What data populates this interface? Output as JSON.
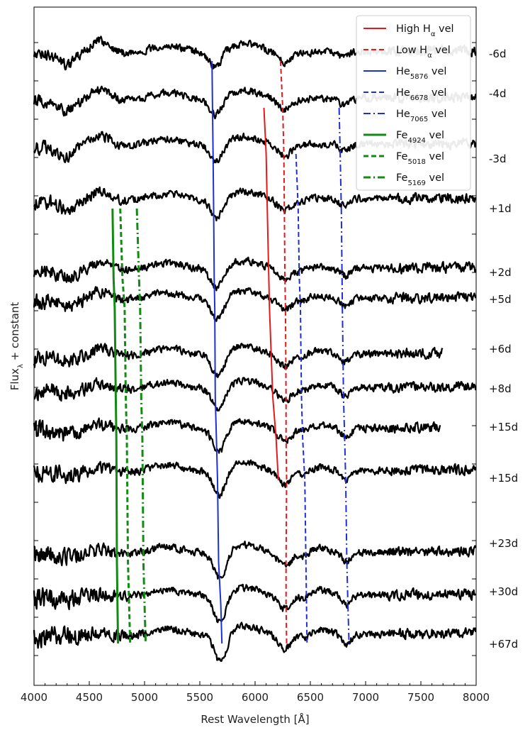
{
  "chart_data": {
    "type": "line",
    "xlabel": "Rest Wavelength [Å]",
    "ylabel_main": "Flux",
    "ylabel_sub": "λ",
    "ylabel_rest": " + constant",
    "xlim": [
      4000,
      8000
    ],
    "xticks": [
      4000,
      4500,
      5000,
      5500,
      6000,
      6500,
      7000,
      7500,
      8000
    ],
    "epochs": [
      {
        "label": "-6d",
        "xmin": 4000,
        "xmax": 8000
      },
      {
        "label": "-4d",
        "xmin": 4000,
        "xmax": 8000
      },
      {
        "label": "-3d",
        "xmin": 4000,
        "xmax": 8000
      },
      {
        "label": "+1d",
        "xmin": 4000,
        "xmax": 8000
      },
      {
        "label": "+2d",
        "xmin": 4000,
        "xmax": 8000
      },
      {
        "label": "+5d",
        "xmin": 4000,
        "xmax": 8000
      },
      {
        "label": "+6d",
        "xmin": 4000,
        "xmax": 7700
      },
      {
        "label": "+8d",
        "xmin": 4000,
        "xmax": 8000
      },
      {
        "label": "+15d",
        "xmin": 4000,
        "xmax": 7680
      },
      {
        "label": "+15d",
        "xmin": 4000,
        "xmax": 8000
      },
      {
        "label": "+23d",
        "xmin": 4000,
        "xmax": 8000
      },
      {
        "label": "+30d",
        "xmin": 4000,
        "xmax": 8000
      },
      {
        "label": "+67d",
        "xmin": 4000,
        "xmax": 8000
      }
    ],
    "velocity_tracks": [
      {
        "name": "High H",
        "sub": "α",
        "suffix": " vel",
        "color": "#e31a1c",
        "dash": "solid",
        "width": 2,
        "wavelengths": [
          6080,
          6100,
          6110,
          6130,
          6160,
          6190,
          6210
        ]
      },
      {
        "name": "Low H",
        "sub": "α",
        "suffix": " vel",
        "color": "#e31a1c",
        "dash": "dashed",
        "width": 2,
        "wavelengths": [
          6230,
          6250,
          6260,
          6265,
          6270,
          6275,
          6280,
          6280,
          6285,
          6280,
          6280,
          6285
        ]
      },
      {
        "name": "He",
        "sub": "5876",
        "suffix": " vel",
        "color": "#1f2fd6",
        "dash": "solid",
        "width": 2,
        "wavelengths": [
          5610,
          5615,
          5620,
          5625,
          5630,
          5635,
          5640,
          5650,
          5660,
          5670,
          5690,
          5700,
          5710
        ]
      },
      {
        "name": "He",
        "sub": "6678",
        "suffix": " vel",
        "color": "#1f2fd6",
        "dash": "dashed",
        "width": 2,
        "wavelengths": [
          6370,
          6390,
          6400,
          6410,
          6420,
          6430,
          6450,
          6470
        ]
      },
      {
        "name": "He",
        "sub": "7065",
        "suffix": " vel",
        "color": "#1f2fd6",
        "dash": "dashdot",
        "width": 2,
        "wavelengths": [
          6760,
          6770,
          6780,
          6790,
          6800,
          6810,
          6820,
          6830,
          6840,
          6850
        ]
      },
      {
        "name": "Fe",
        "sub": "4924",
        "suffix": " vel",
        "color": "#138a13",
        "dash": "solid",
        "width": 3,
        "wavelengths": [
          4710,
          4720,
          4730,
          4740,
          4745,
          4750,
          4755,
          4760
        ]
      },
      {
        "name": "Fe",
        "sub": "5018",
        "suffix": " vel",
        "color": "#138a13",
        "dash": "dashed",
        "width": 3,
        "wavelengths": [
          4780,
          4800,
          4820,
          4830,
          4840,
          4850,
          4860,
          4870
        ]
      },
      {
        "name": "Fe",
        "sub": "5169",
        "suffix": " vel",
        "color": "#138a13",
        "dash": "dashdot",
        "width": 3,
        "wavelengths": [
          4930,
          4950,
          4960,
          4970,
          4980,
          4990,
          5000,
          5010
        ]
      }
    ],
    "legend_position": "top-right",
    "grid": false
  }
}
